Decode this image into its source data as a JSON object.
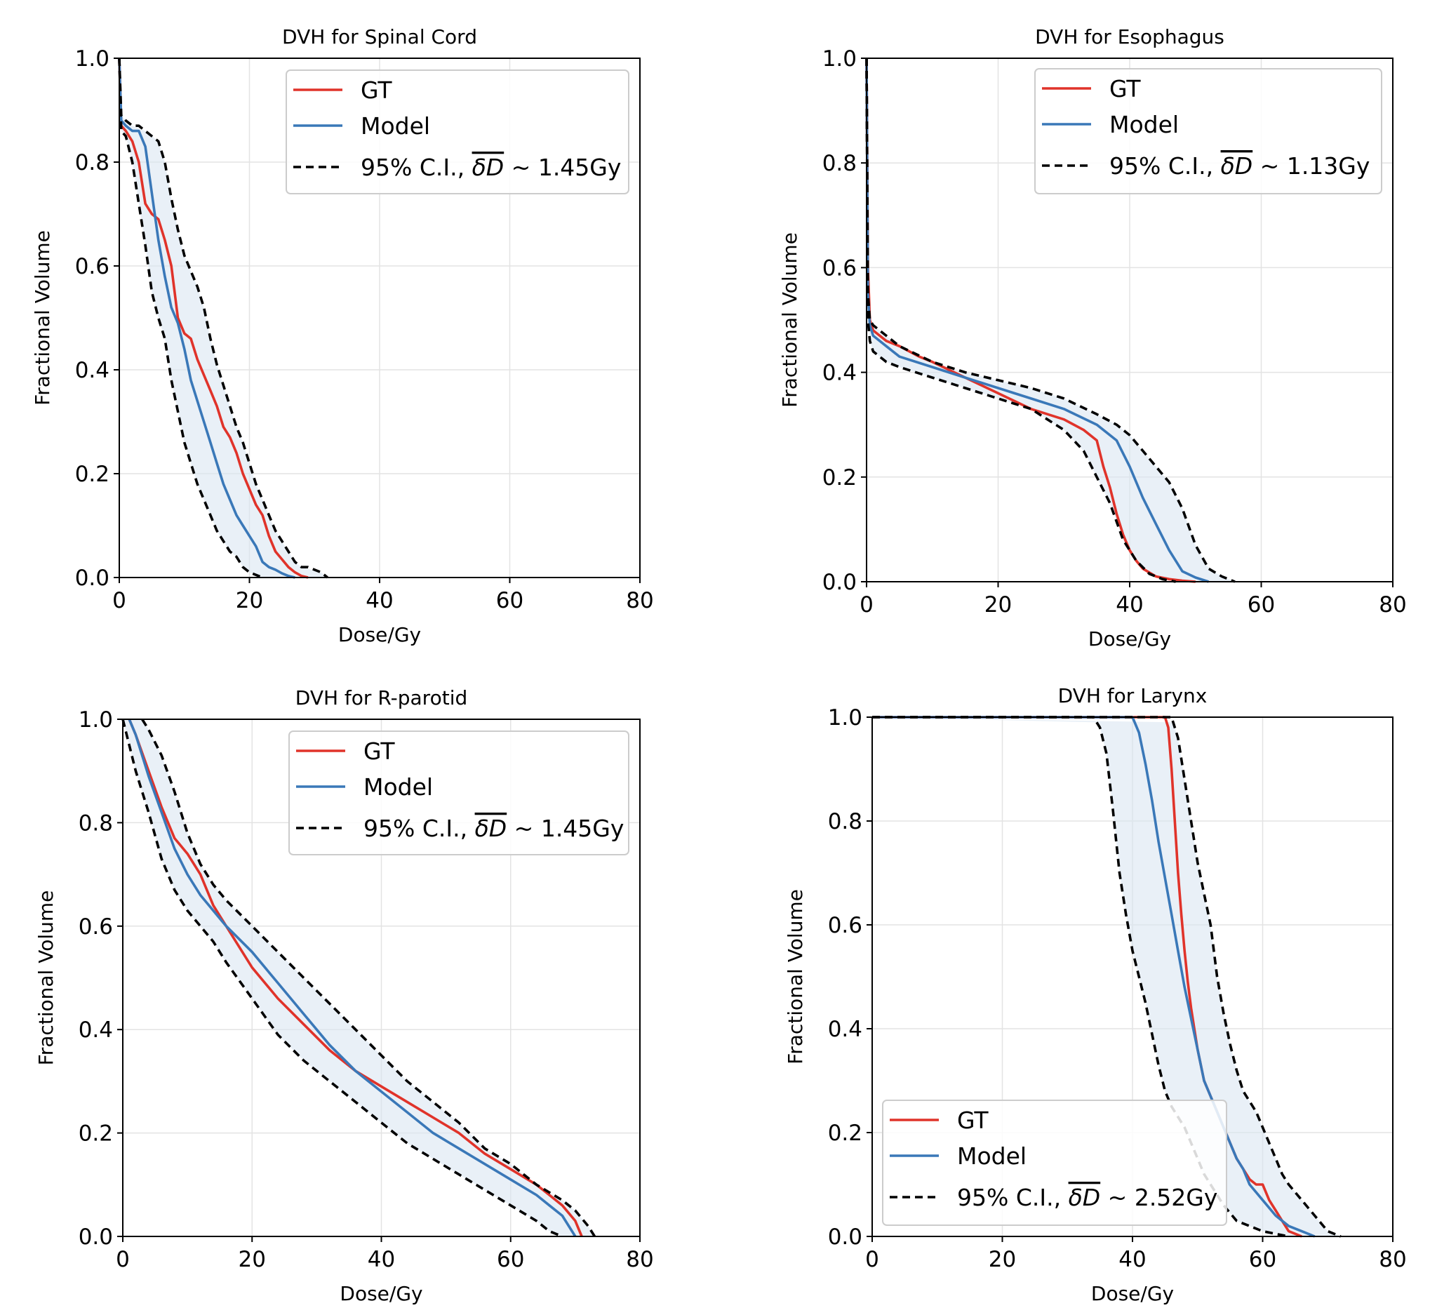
{
  "figure": {
    "background": "#ffffff"
  },
  "colors": {
    "gt": "#e0332a",
    "model": "#3a78b8",
    "ci": "#000000",
    "band": "#dbe6f1"
  },
  "legend": {
    "gt": "GT",
    "model": "Model",
    "ci_prefix": "95% C.I., ",
    "ci_symbol": "δD",
    "ci_tilde": "~"
  },
  "chart_data": [
    {
      "type": "line",
      "title": "DVH for Spinal Cord",
      "xlabel": "Dose/Gy",
      "ylabel": "Fractional Volume",
      "xlim": [
        0,
        80
      ],
      "ylim": [
        0,
        1
      ],
      "xticks": [
        "0",
        "20",
        "40",
        "60",
        "80"
      ],
      "yticks": [
        "0.0",
        "0.2",
        "0.4",
        "0.6",
        "0.8",
        "1.0"
      ],
      "grid": true,
      "legend_position": "top-right",
      "ci_value": "1.45Gy",
      "series": [
        {
          "name": "GT",
          "role": "gt",
          "x": [
            0,
            0.3,
            1,
            2,
            3,
            4,
            5,
            6,
            7,
            8,
            9,
            10,
            11,
            12,
            13,
            14,
            15,
            16,
            17,
            18,
            19,
            20,
            21,
            22,
            23,
            24,
            25,
            26,
            27,
            28,
            29
          ],
          "y": [
            1,
            0.87,
            0.86,
            0.84,
            0.8,
            0.72,
            0.7,
            0.69,
            0.65,
            0.6,
            0.5,
            0.47,
            0.46,
            0.42,
            0.39,
            0.36,
            0.33,
            0.29,
            0.27,
            0.24,
            0.2,
            0.17,
            0.14,
            0.12,
            0.08,
            0.05,
            0.035,
            0.02,
            0.01,
            0.003,
            0
          ]
        },
        {
          "name": "Model",
          "role": "model",
          "x": [
            0,
            0.3,
            1,
            2,
            3,
            4,
            5,
            6,
            7,
            8,
            9,
            10,
            11,
            12,
            13,
            14,
            15,
            16,
            17,
            18,
            19,
            20,
            21,
            22,
            23,
            24,
            25,
            26,
            27
          ],
          "y": [
            1,
            0.88,
            0.87,
            0.86,
            0.86,
            0.83,
            0.74,
            0.65,
            0.58,
            0.52,
            0.49,
            0.44,
            0.38,
            0.34,
            0.3,
            0.26,
            0.22,
            0.18,
            0.15,
            0.12,
            0.1,
            0.08,
            0.06,
            0.03,
            0.02,
            0.015,
            0.008,
            0.003,
            0
          ]
        },
        {
          "name": "CI upper",
          "role": "ci",
          "x": [
            0,
            0.3,
            1,
            2,
            3,
            4,
            5,
            6,
            7,
            8,
            9,
            10,
            11,
            12,
            13,
            14,
            15,
            16,
            17,
            18,
            19,
            20,
            21,
            22,
            23,
            24,
            25,
            26,
            27,
            28,
            29,
            30,
            31,
            32
          ],
          "y": [
            1,
            0.89,
            0.88,
            0.87,
            0.87,
            0.86,
            0.85,
            0.84,
            0.8,
            0.73,
            0.67,
            0.62,
            0.59,
            0.56,
            0.52,
            0.46,
            0.41,
            0.37,
            0.33,
            0.29,
            0.26,
            0.22,
            0.18,
            0.15,
            0.12,
            0.09,
            0.07,
            0.05,
            0.03,
            0.02,
            0.02,
            0.015,
            0.01,
            0
          ]
        },
        {
          "name": "CI lower",
          "role": "ci",
          "x": [
            0,
            0.3,
            1,
            2,
            3,
            4,
            5,
            6,
            7,
            8,
            9,
            10,
            11,
            12,
            13,
            14,
            15,
            16,
            17,
            18,
            19,
            20,
            21,
            22
          ],
          "y": [
            1,
            0.86,
            0.85,
            0.8,
            0.72,
            0.64,
            0.55,
            0.5,
            0.46,
            0.38,
            0.32,
            0.26,
            0.22,
            0.18,
            0.15,
            0.12,
            0.09,
            0.07,
            0.05,
            0.04,
            0.02,
            0.01,
            0.005,
            0
          ]
        }
      ]
    },
    {
      "type": "line",
      "title": "DVH for Esophagus",
      "xlabel": "Dose/Gy",
      "ylabel": "Fractional Volume",
      "xlim": [
        0,
        80
      ],
      "ylim": [
        0,
        1
      ],
      "xticks": [
        "0",
        "20",
        "40",
        "60",
        "80"
      ],
      "yticks": [
        "0.0",
        "0.2",
        "0.4",
        "0.6",
        "0.8",
        "1.0"
      ],
      "grid": true,
      "legend_position": "top-right",
      "ci_value": "1.13Gy",
      "series": [
        {
          "name": "GT",
          "role": "gt",
          "x": [
            0,
            0.2,
            0.5,
            1,
            3,
            5,
            8,
            10,
            15,
            20,
            25,
            30,
            33,
            35,
            36,
            37,
            38,
            39,
            40,
            41,
            42,
            44,
            46,
            48,
            50
          ],
          "y": [
            1,
            0.6,
            0.5,
            0.48,
            0.46,
            0.45,
            0.43,
            0.42,
            0.39,
            0.36,
            0.33,
            0.31,
            0.29,
            0.27,
            0.22,
            0.18,
            0.13,
            0.09,
            0.06,
            0.04,
            0.025,
            0.01,
            0.005,
            0.002,
            0
          ]
        },
        {
          "name": "Model",
          "role": "model",
          "x": [
            0,
            0.2,
            0.5,
            1,
            3,
            5,
            10,
            15,
            20,
            25,
            30,
            35,
            38,
            40,
            42,
            44,
            46,
            48,
            50,
            52
          ],
          "y": [
            1,
            0.55,
            0.49,
            0.47,
            0.45,
            0.43,
            0.41,
            0.39,
            0.37,
            0.35,
            0.33,
            0.3,
            0.27,
            0.22,
            0.16,
            0.11,
            0.06,
            0.02,
            0.008,
            0
          ]
        },
        {
          "name": "CI upper",
          "role": "ci",
          "x": [
            0,
            0.2,
            0.5,
            1,
            3,
            5,
            10,
            15,
            20,
            25,
            30,
            35,
            38,
            40,
            42,
            44,
            46,
            48,
            50,
            52,
            54,
            56
          ],
          "y": [
            1,
            0.55,
            0.5,
            0.49,
            0.47,
            0.45,
            0.42,
            0.4,
            0.385,
            0.37,
            0.35,
            0.32,
            0.3,
            0.28,
            0.25,
            0.22,
            0.19,
            0.14,
            0.07,
            0.025,
            0.01,
            0
          ]
        },
        {
          "name": "CI lower",
          "role": "ci",
          "x": [
            0,
            0.2,
            0.5,
            1,
            3,
            5,
            10,
            15,
            20,
            25,
            30,
            33,
            35,
            37,
            39,
            41,
            43,
            45,
            47
          ],
          "y": [
            1,
            0.5,
            0.46,
            0.44,
            0.42,
            0.41,
            0.39,
            0.37,
            0.35,
            0.33,
            0.29,
            0.25,
            0.2,
            0.15,
            0.08,
            0.04,
            0.015,
            0.005,
            0
          ]
        }
      ]
    },
    {
      "type": "line",
      "title": "DVH for R-parotid",
      "xlabel": "Dose/Gy",
      "ylabel": "Fractional Volume",
      "xlim": [
        0,
        80
      ],
      "ylim": [
        0,
        1
      ],
      "xticks": [
        "0",
        "20",
        "40",
        "60",
        "80"
      ],
      "yticks": [
        "0.0",
        "0.2",
        "0.4",
        "0.6",
        "0.8",
        "1.0"
      ],
      "grid": true,
      "legend_position": "top-right",
      "ci_value": "1.45Gy",
      "series": [
        {
          "name": "GT",
          "role": "gt",
          "x": [
            1,
            2,
            4,
            6,
            8,
            10,
            12,
            14,
            16,
            20,
            24,
            28,
            32,
            36,
            40,
            44,
            48,
            52,
            56,
            60,
            64,
            66,
            68,
            70,
            71
          ],
          "y": [
            1,
            0.97,
            0.9,
            0.83,
            0.77,
            0.74,
            0.7,
            0.64,
            0.6,
            0.52,
            0.46,
            0.41,
            0.36,
            0.32,
            0.29,
            0.26,
            0.23,
            0.2,
            0.16,
            0.13,
            0.1,
            0.08,
            0.06,
            0.03,
            0
          ]
        },
        {
          "name": "Model",
          "role": "model",
          "x": [
            1,
            2,
            4,
            6,
            8,
            10,
            12,
            14,
            16,
            20,
            24,
            28,
            32,
            36,
            40,
            44,
            48,
            52,
            56,
            60,
            64,
            66,
            68,
            70
          ],
          "y": [
            1,
            0.97,
            0.89,
            0.82,
            0.75,
            0.7,
            0.66,
            0.63,
            0.6,
            0.55,
            0.49,
            0.43,
            0.37,
            0.32,
            0.28,
            0.24,
            0.2,
            0.17,
            0.14,
            0.11,
            0.08,
            0.06,
            0.04,
            0
          ]
        },
        {
          "name": "CI upper",
          "role": "ci",
          "x": [
            3,
            4,
            6,
            8,
            10,
            12,
            14,
            16,
            20,
            24,
            28,
            32,
            36,
            40,
            44,
            48,
            52,
            56,
            60,
            64,
            68,
            70,
            72,
            73
          ],
          "y": [
            1,
            0.98,
            0.93,
            0.86,
            0.78,
            0.72,
            0.68,
            0.65,
            0.6,
            0.55,
            0.5,
            0.45,
            0.4,
            0.35,
            0.3,
            0.26,
            0.22,
            0.17,
            0.14,
            0.1,
            0.07,
            0.05,
            0.02,
            0
          ]
        },
        {
          "name": "CI lower",
          "role": "ci",
          "x": [
            0,
            1,
            2,
            4,
            6,
            8,
            10,
            12,
            14,
            16,
            20,
            24,
            28,
            32,
            36,
            40,
            44,
            48,
            52,
            56,
            60,
            64,
            66,
            67,
            68
          ],
          "y": [
            1,
            0.95,
            0.9,
            0.82,
            0.73,
            0.67,
            0.63,
            0.6,
            0.57,
            0.53,
            0.46,
            0.39,
            0.34,
            0.3,
            0.26,
            0.22,
            0.18,
            0.15,
            0.12,
            0.09,
            0.06,
            0.03,
            0.01,
            0.005,
            0
          ]
        }
      ]
    },
    {
      "type": "line",
      "title": "DVH for Larynx",
      "xlabel": "Dose/Gy",
      "ylabel": "Fractional Volume",
      "xlim": [
        0,
        80
      ],
      "ylim": [
        0,
        1
      ],
      "xticks": [
        "0",
        "20",
        "40",
        "60",
        "80"
      ],
      "yticks": [
        "0.0",
        "0.2",
        "0.4",
        "0.6",
        "0.8",
        "1.0"
      ],
      "grid": true,
      "legend_position": "bottom-left",
      "ci_value": "2.52Gy",
      "series": [
        {
          "name": "GT",
          "role": "gt",
          "x": [
            0,
            45,
            45.5,
            46,
            46.5,
            47,
            47.5,
            48,
            48.5,
            49,
            49.5,
            50,
            50.5,
            51,
            52,
            53,
            54,
            55,
            56,
            57,
            58,
            59,
            60,
            61,
            62,
            63,
            64,
            66
          ],
          "y": [
            1,
            1,
            0.98,
            0.9,
            0.8,
            0.7,
            0.62,
            0.55,
            0.49,
            0.44,
            0.4,
            0.36,
            0.33,
            0.3,
            0.27,
            0.24,
            0.21,
            0.18,
            0.15,
            0.13,
            0.11,
            0.1,
            0.1,
            0.07,
            0.05,
            0.03,
            0.01,
            0
          ]
        },
        {
          "name": "Model",
          "role": "model",
          "x": [
            0,
            40,
            41,
            42,
            43,
            44,
            45,
            46,
            47,
            48,
            49,
            50,
            51,
            52,
            53,
            54,
            55,
            56,
            57,
            58,
            60,
            62,
            64,
            66,
            68
          ],
          "y": [
            1,
            1,
            0.97,
            0.91,
            0.84,
            0.76,
            0.69,
            0.62,
            0.55,
            0.48,
            0.42,
            0.36,
            0.3,
            0.27,
            0.24,
            0.21,
            0.18,
            0.15,
            0.13,
            0.1,
            0.07,
            0.04,
            0.02,
            0.01,
            0
          ]
        },
        {
          "name": "CI upper",
          "role": "ci",
          "x": [
            0,
            46,
            47,
            48,
            49,
            50,
            51,
            52,
            53,
            54,
            55,
            56,
            57,
            58,
            59,
            60,
            61,
            62,
            63,
            64,
            66,
            68,
            70,
            72
          ],
          "y": [
            1,
            1,
            0.96,
            0.88,
            0.8,
            0.72,
            0.66,
            0.6,
            0.5,
            0.43,
            0.37,
            0.32,
            0.28,
            0.26,
            0.24,
            0.21,
            0.18,
            0.15,
            0.12,
            0.1,
            0.07,
            0.04,
            0.01,
            0
          ]
        },
        {
          "name": "CI lower",
          "role": "ci",
          "x": [
            0,
            34,
            35,
            36,
            37,
            38,
            39,
            40,
            41,
            42,
            43,
            44,
            45,
            46,
            47,
            48,
            49,
            50,
            51,
            52,
            53,
            54,
            55,
            56,
            58,
            60,
            62,
            64
          ],
          "y": [
            1,
            1,
            0.98,
            0.93,
            0.82,
            0.7,
            0.62,
            0.55,
            0.5,
            0.45,
            0.39,
            0.33,
            0.28,
            0.25,
            0.23,
            0.21,
            0.18,
            0.15,
            0.12,
            0.1,
            0.08,
            0.06,
            0.045,
            0.03,
            0.02,
            0.01,
            0.005,
            0
          ]
        }
      ]
    }
  ]
}
